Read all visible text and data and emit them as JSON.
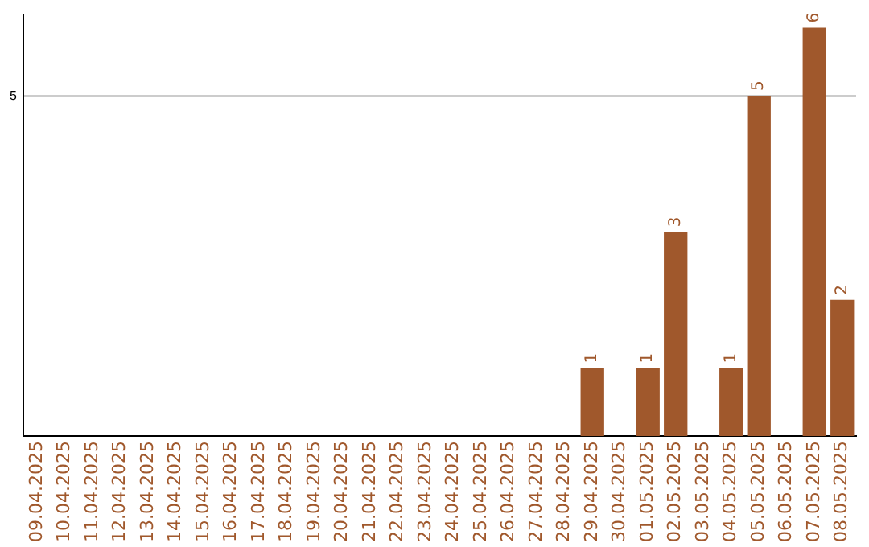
{
  "chart_data": {
    "type": "bar",
    "categories": [
      "09.04.2025",
      "10.04.2025",
      "11.04.2025",
      "12.04.2025",
      "13.04.2025",
      "14.04.2025",
      "15.04.2025",
      "16.04.2025",
      "17.04.2025",
      "18.04.2025",
      "19.04.2025",
      "20.04.2025",
      "21.04.2025",
      "22.04.2025",
      "23.04.2025",
      "24.04.2025",
      "25.04.2025",
      "26.04.2025",
      "27.04.2025",
      "28.04.2025",
      "29.04.2025",
      "30.04.2025",
      "01.05.2025",
      "02.05.2025",
      "03.05.2025",
      "04.05.2025",
      "05.05.2025",
      "06.05.2025",
      "07.05.2025",
      "08.05.2025"
    ],
    "values": [
      null,
      null,
      null,
      null,
      null,
      null,
      null,
      null,
      null,
      null,
      null,
      null,
      null,
      null,
      null,
      null,
      null,
      null,
      null,
      null,
      1,
      null,
      1,
      3,
      null,
      1,
      5,
      null,
      6,
      2
    ],
    "color": "#a0582c",
    "ylim": [
      0,
      6.2
    ],
    "yticks": [
      5
    ],
    "grid": "y",
    "data_labels": true,
    "legend": false
  }
}
